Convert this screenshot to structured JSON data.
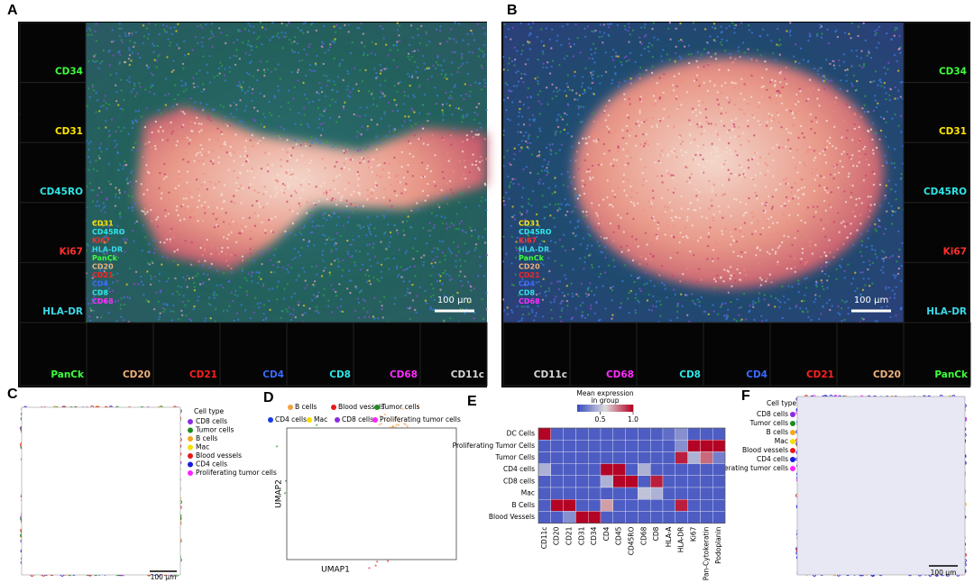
{
  "panels": {
    "a": {
      "label": "A",
      "side_thumbs": [
        {
          "name": "CD34",
          "color": "#3cff3c"
        },
        {
          "name": "CD31",
          "color": "#ffe600"
        },
        {
          "name": "CD45RO",
          "color": "#2ee6e6"
        },
        {
          "name": "Ki67",
          "color": "#ff3030"
        },
        {
          "name": "HLA-DR",
          "color": "#3ad8e8"
        }
      ],
      "bottom_thumbs": [
        {
          "name": "PanCk",
          "color": "#3cff3c"
        },
        {
          "name": "CD20",
          "color": "#f0b27a"
        },
        {
          "name": "CD21",
          "color": "#ff2020"
        },
        {
          "name": "CD4",
          "color": "#3a6bff"
        },
        {
          "name": "CD8",
          "color": "#2ee6e6"
        },
        {
          "name": "CD68",
          "color": "#ff2cff"
        },
        {
          "name": "CD11c",
          "color": "#d8d8d8"
        }
      ],
      "overlay_markers": [
        {
          "name": "CD31",
          "color": "#ffe600"
        },
        {
          "name": "CD45RO",
          "color": "#2ee6e6"
        },
        {
          "name": "Ki67",
          "color": "#ff3030"
        },
        {
          "name": "HLA-DR",
          "color": "#3ad8e8"
        },
        {
          "name": "PanCk",
          "color": "#3cff3c"
        },
        {
          "name": "CD20",
          "color": "#f0b27a"
        },
        {
          "name": "CD21",
          "color": "#ff2020"
        },
        {
          "name": "CD4",
          "color": "#3a6bff"
        },
        {
          "name": "CD8",
          "color": "#2ee6e6"
        },
        {
          "name": "CD68",
          "color": "#ff2cff"
        }
      ],
      "scale": "100 µm"
    },
    "b": {
      "label": "B",
      "side_thumbs": [
        {
          "name": "CD34",
          "color": "#3cff3c"
        },
        {
          "name": "CD31",
          "color": "#ffe600"
        },
        {
          "name": "CD45RO",
          "color": "#2ee6e6"
        },
        {
          "name": "Ki67",
          "color": "#ff3030"
        },
        {
          "name": "HLA-DR",
          "color": "#3ad8e8"
        }
      ],
      "bottom_thumbs": [
        {
          "name": "CD11c",
          "color": "#d8d8d8"
        },
        {
          "name": "CD68",
          "color": "#ff2cff"
        },
        {
          "name": "CD8",
          "color": "#2ee6e6"
        },
        {
          "name": "CD4",
          "color": "#3a6bff"
        },
        {
          "name": "CD21",
          "color": "#ff2020"
        },
        {
          "name": "CD20",
          "color": "#f0b27a"
        },
        {
          "name": "PanCk",
          "color": "#3cff3c"
        }
      ],
      "overlay_markers": [
        {
          "name": "CD31",
          "color": "#ffe600"
        },
        {
          "name": "CD45RO",
          "color": "#2ee6e6"
        },
        {
          "name": "Ki67",
          "color": "#ff3030"
        },
        {
          "name": "HLA-DR",
          "color": "#3ad8e8"
        },
        {
          "name": "PanCk",
          "color": "#3cff3c"
        },
        {
          "name": "CD20",
          "color": "#f0b27a"
        },
        {
          "name": "CD21",
          "color": "#ff2020"
        },
        {
          "name": "CD4",
          "color": "#3a6bff"
        },
        {
          "name": "CD8",
          "color": "#2ee6e6"
        },
        {
          "name": "CD68",
          "color": "#ff2cff"
        }
      ],
      "scale": "100 µm"
    },
    "c": {
      "label": "C",
      "legend_title": "Cell type",
      "legend": [
        {
          "name": "CD8 cells",
          "color": "#8a2be2"
        },
        {
          "name": "Tumor cells",
          "color": "#1e8c1e"
        },
        {
          "name": "B cells",
          "color": "#f5a623"
        },
        {
          "name": "Mac",
          "color": "#f5e000"
        },
        {
          "name": "Blood vessels",
          "color": "#e81818"
        },
        {
          "name": "CD4 cells",
          "color": "#1a1ae0"
        },
        {
          "name": "Proliferating tumor cells",
          "color": "#ff22ff"
        }
      ],
      "scale": "100 µm"
    },
    "d": {
      "label": "D",
      "x_label": "UMAP1",
      "y_label": "UMAP2",
      "legend": [
        {
          "name": "B cells",
          "color": "#f5a040"
        },
        {
          "name": "Blood vessels",
          "color": "#e81818"
        },
        {
          "name": "Tumor cells",
          "color": "#1e8c1e"
        },
        {
          "name": "CD4 cells",
          "color": "#1a3ae0"
        },
        {
          "name": "Mac",
          "color": "#f5e000"
        },
        {
          "name": "CD8 cells",
          "color": "#8a2be2"
        },
        {
          "name": "Proliferating tumor cells",
          "color": "#ff22ff"
        }
      ]
    },
    "e": {
      "label": "E",
      "colorbar_title": [
        "Mean expression",
        "in group"
      ],
      "clim": [
        0.15,
        1
      ],
      "colorbar_ticks": [
        0.5,
        {
          "value": 1,
          "label": "1.0"
        }
      ],
      "rows": [
        "DC Cells",
        "Proliferating Tumor Cells",
        "Tumor Cells",
        "CD4 cells",
        "CD8 cells",
        "Mac",
        "B Cells",
        "Blood Vessels"
      ],
      "columns": [
        "CD11c",
        "CD20",
        "CD21",
        "CD31",
        "CD34",
        "CD4",
        "CD45",
        "CD45RO",
        "CD68",
        "CD8",
        "HLA-A",
        "HLA-DR",
        "Ki67",
        "Pan-Cytokeratin",
        "Podoplanin"
      ],
      "values": [
        [
          1,
          0.2,
          0.2,
          0.2,
          0.2,
          0.2,
          0.2,
          0.2,
          0.2,
          0.2,
          0.25,
          0.35,
          0.2,
          0.2,
          0.2
        ],
        [
          0.2,
          0.2,
          0.2,
          0.2,
          0.2,
          0.2,
          0.2,
          0.2,
          0.2,
          0.2,
          0.2,
          0.35,
          1,
          1,
          1
        ],
        [
          0.2,
          0.2,
          0.2,
          0.2,
          0.2,
          0.2,
          0.2,
          0.2,
          0.2,
          0.2,
          0.2,
          0.95,
          0.45,
          0.8,
          0.3
        ],
        [
          0.45,
          0.2,
          0.2,
          0.2,
          0.2,
          1,
          1,
          0.2,
          0.45,
          0.2,
          0.2,
          0.2,
          0.2,
          0.2,
          0.2
        ],
        [
          0.2,
          0.2,
          0.2,
          0.2,
          0.2,
          0.45,
          1,
          1,
          0.2,
          0.95,
          0.2,
          0.2,
          0.2,
          0.2,
          0.2
        ],
        [
          0.2,
          0.2,
          0.2,
          0.2,
          0.2,
          0.2,
          0.2,
          0.2,
          0.5,
          0.45,
          0.2,
          0.2,
          0.2,
          0.2,
          0.2
        ],
        [
          0.2,
          1,
          1,
          0.2,
          0.2,
          0.7,
          0.2,
          0.2,
          0.2,
          0.2,
          0.2,
          0.95,
          0.2,
          0.2,
          0.2
        ],
        [
          0.2,
          0.2,
          0.35,
          1,
          1,
          0.2,
          0.2,
          0.2,
          0.2,
          0.2,
          0.2,
          0.2,
          0.2,
          0.2,
          0.2
        ]
      ]
    },
    "f": {
      "label": "F",
      "legend_title": "Cell type",
      "legend": [
        {
          "name": "CD8 cells",
          "color": "#8a2be2"
        },
        {
          "name": "Tumor cells",
          "color": "#1e8c1e"
        },
        {
          "name": "B cells",
          "color": "#f5a623"
        },
        {
          "name": "Mac",
          "color": "#f5e000"
        },
        {
          "name": "Blood vessels",
          "color": "#e81818"
        },
        {
          "name": "CD4 cells",
          "color": "#1a1ae0"
        },
        {
          "name": "Proliferating tumor cells",
          "color": "#ff22ff"
        }
      ],
      "scale": "100 µm"
    }
  }
}
